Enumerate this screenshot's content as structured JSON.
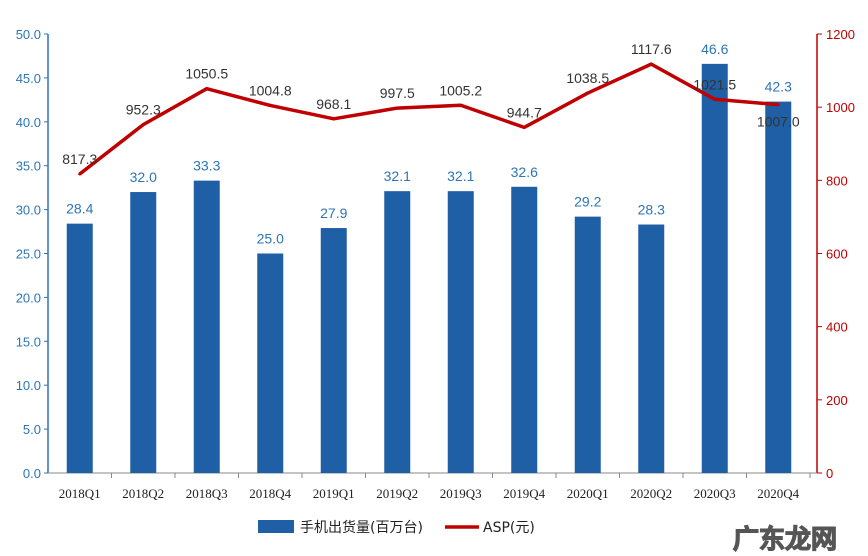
{
  "chart_data": {
    "type": "bar+line",
    "categories": [
      "2018Q1",
      "2018Q2",
      "2018Q3",
      "2018Q4",
      "2019Q1",
      "2019Q2",
      "2019Q3",
      "2019Q4",
      "2020Q1",
      "2020Q2",
      "2020Q3",
      "2020Q4"
    ],
    "series": [
      {
        "name": "手机出货量(百万台)",
        "type": "bar",
        "axis": "left",
        "color": "#1f5fa6",
        "values": [
          28.4,
          32.0,
          33.3,
          25.0,
          27.9,
          32.1,
          32.1,
          32.6,
          29.2,
          28.3,
          46.6,
          42.3
        ],
        "labels": [
          "28.4",
          "32.0",
          "33.3",
          "25.0",
          "27.9",
          "32.1",
          "32.1",
          "32.6",
          "29.2",
          "28.3",
          "46.6",
          "42.3"
        ]
      },
      {
        "name": "ASP(元)",
        "type": "line",
        "axis": "right",
        "color": "#c00000",
        "values": [
          817.3,
          952.3,
          1050.5,
          1004.8,
          968.1,
          997.5,
          1005.2,
          944.7,
          1038.5,
          1117.6,
          1021.5,
          1007.0
        ],
        "labels": [
          "817.3",
          "952.3",
          "1050.5",
          "1004.8",
          "968.1",
          "997.5",
          "1005.2",
          "944.7",
          "1038.5",
          "1117.6",
          "1021.5",
          "1007.0"
        ]
      }
    ],
    "left_axis": {
      "ylim": [
        0,
        50
      ],
      "ticks": [
        "0.0",
        "5.0",
        "10.0",
        "15.0",
        "20.0",
        "25.0",
        "30.0",
        "35.0",
        "40.0",
        "45.0",
        "50.0"
      ],
      "color": "#2e75b6"
    },
    "right_axis": {
      "ylim": [
        0,
        1200
      ],
      "ticks": [
        "0",
        "200",
        "400",
        "600",
        "800",
        "1000",
        "1200"
      ],
      "color": "#c00000"
    },
    "grid": false,
    "legend": "bottom",
    "watermark": "广东龙网"
  }
}
